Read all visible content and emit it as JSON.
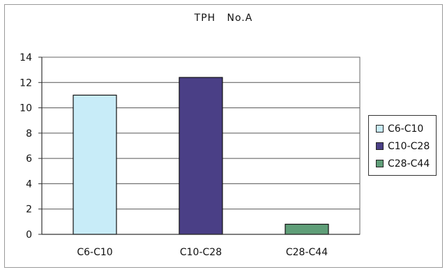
{
  "chart_data": {
    "type": "bar",
    "title": "TPH   No.A",
    "xlabel": "",
    "ylabel": "",
    "categories": [
      "C6-C10",
      "C10-C28",
      "C28-C44"
    ],
    "values": [
      11.0,
      12.4,
      0.8
    ],
    "colors": [
      "#c8ecf8",
      "#4a3f86",
      "#5f9e78"
    ],
    "ylim": [
      0,
      14
    ],
    "yticks": [
      "0",
      "2",
      "4",
      "6",
      "8",
      "10",
      "12",
      "14"
    ],
    "grid": true,
    "legend_position": "right",
    "legend": [
      "C6-C10",
      "C10-C28",
      "C28-C44"
    ]
  }
}
